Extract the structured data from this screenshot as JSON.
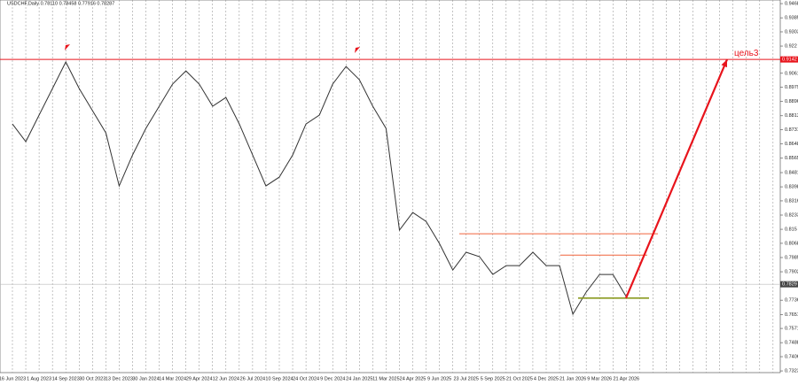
{
  "chart_data": {
    "type": "line",
    "title": "USDCHF,Daily  0.78110 0.78458 0.77916 0.78287",
    "categories": [
      "16 Jun 2023",
      null,
      "1 Aug 2023",
      null,
      "14 Sep 2023",
      null,
      "30 Oct 2023",
      null,
      "13 Dec 2023",
      null,
      "30 Jan 2024",
      null,
      "14 Mar 2024",
      null,
      "29 Apr 2024",
      null,
      "12 Jun 2024",
      null,
      "26 Jul 2024",
      null,
      "10 Sep 2024",
      null,
      "24 Oct 2024",
      null,
      "9 Dec 2024",
      null,
      "24 Jan 2025",
      null,
      "11 Mar 2025",
      null,
      "24 Apr 2025",
      null,
      "9 Jun 2025",
      null,
      "23 Jul 2025",
      null,
      "5 Sep 2025",
      null,
      "21 Oct 2025",
      null,
      "4 Dec 2025",
      null,
      "21 Jan 2026",
      null,
      "9 Mar 2026",
      null,
      "21 Apr 2026",
      null,
      null,
      null,
      null,
      null,
      null,
      null,
      null,
      null,
      null,
      null
    ],
    "series": [
      {
        "name": "USDCHF",
        "color": "#333333",
        "values": [
          0.8765,
          0.8662,
          0.8817,
          0.8972,
          0.9127,
          0.8972,
          0.8843,
          0.8713,
          0.8403,
          0.8584,
          0.8739,
          0.8869,
          0.8998,
          0.9075,
          0.8998,
          0.8869,
          0.892,
          0.8765,
          0.8584,
          0.8403,
          0.8455,
          0.8584,
          0.8765,
          0.8817,
          0.8998,
          0.9101,
          0.9024,
          0.8869,
          0.8739,
          0.8145,
          0.8248,
          0.8196,
          0.8067,
          0.7912,
          0.8016,
          0.799,
          0.7886,
          0.7938,
          0.7938,
          0.8016,
          0.7938,
          0.7938,
          0.7654,
          0.7783,
          0.7886,
          0.7886,
          0.7757,
          null,
          null,
          null,
          null,
          null,
          null,
          null,
          null,
          null,
          null,
          null
        ]
      }
    ],
    "ylim": [
      0.7313,
      0.9489
    ],
    "yticks": [
      0.9468,
      0.9385,
      0.9303,
      0.922,
      0.9137,
      0.9061,
      0.8979,
      0.8896,
      0.8813,
      0.8731,
      0.8648,
      0.8565,
      0.8481,
      0.8398,
      0.8316,
      0.8233,
      0.815,
      0.8068,
      0.7985,
      0.7902,
      0.7819,
      0.7736,
      0.7651,
      0.7571,
      0.7488,
      0.7406,
      0.7323
    ],
    "current_price": 0.7829,
    "target": {
      "value": 0.9142,
      "label": "цель3",
      "color": "#e8141c"
    },
    "levels": [
      {
        "value": 0.8124,
        "color": "#f0643c"
      },
      {
        "value": 0.7999,
        "color": "#f0643c"
      },
      {
        "value": 0.7748,
        "color": "#8a9a20"
      }
    ],
    "grid": true
  }
}
